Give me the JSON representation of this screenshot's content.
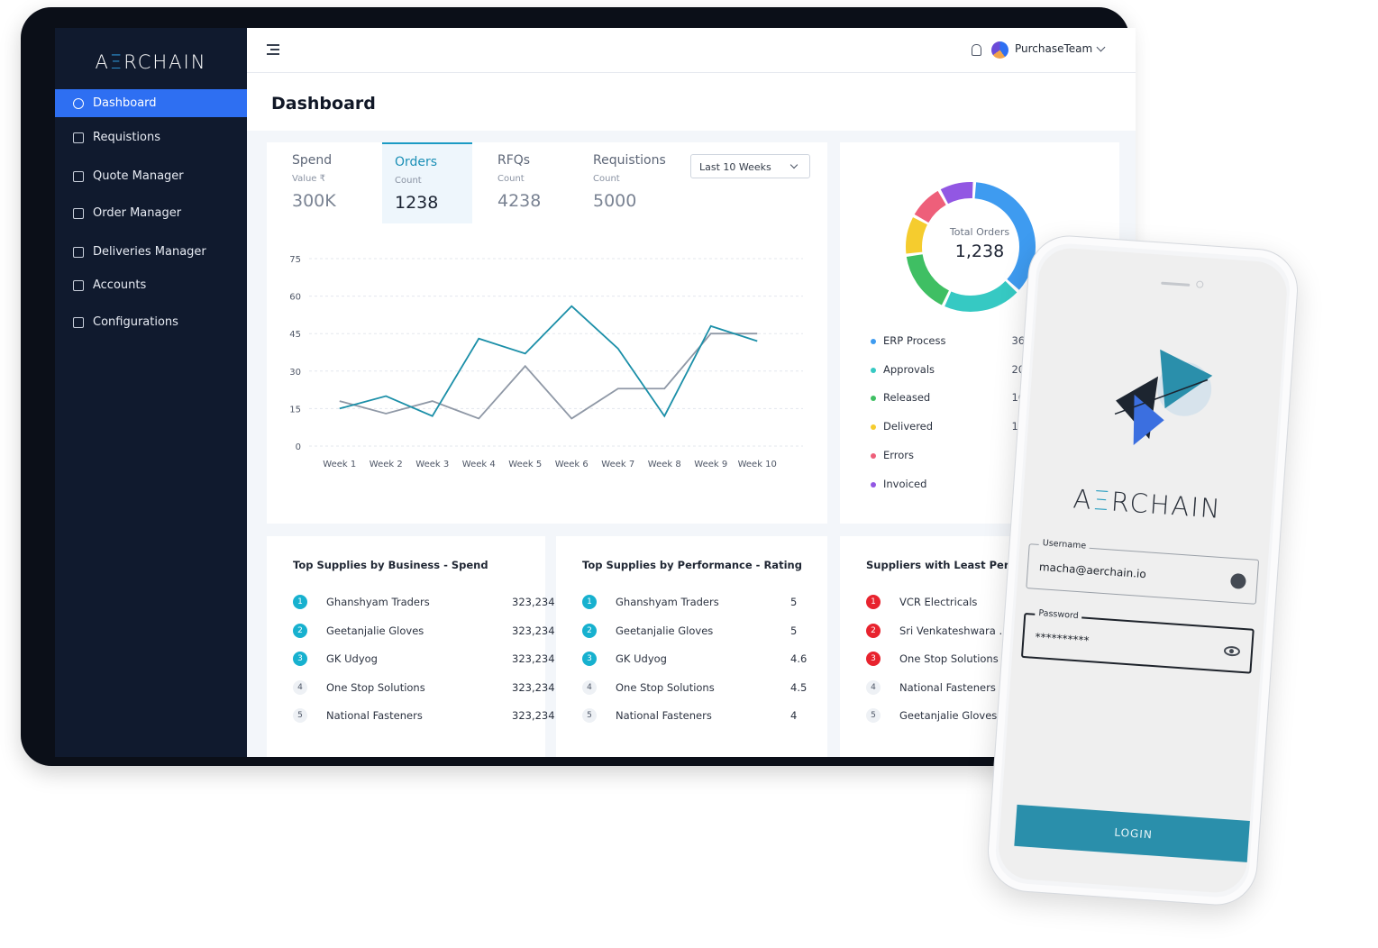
{
  "brand": {
    "logo_text_pre": "A",
    "logo_text_bar": "Ξ",
    "logo_text_post": "RCHAIN"
  },
  "sidebar": {
    "items": [
      {
        "label": "Dashboard",
        "icon": "gauge-icon",
        "active": true
      },
      {
        "label": "Requistions",
        "icon": "document-icon"
      },
      {
        "label": "Quote Manager",
        "icon": "edit-icon"
      },
      {
        "label": "Order Manager",
        "icon": "cart-icon"
      },
      {
        "label": "Deliveries Manager",
        "icon": "truck-icon"
      },
      {
        "label": "Accounts",
        "icon": "wallet-icon"
      },
      {
        "label": "Configurations",
        "icon": "gear-icon"
      }
    ]
  },
  "topbar": {
    "user": "PurchaseTeam"
  },
  "page": {
    "title": "Dashboard"
  },
  "kpis": [
    {
      "label": "Spend",
      "sub": "Value ₹",
      "value": "300K",
      "active": false
    },
    {
      "label": "Orders",
      "sub": "Count",
      "value": "1238",
      "active": true
    },
    {
      "label": "RFQs",
      "sub": "Count",
      "value": "4238",
      "active": false
    },
    {
      "label": "Requistions",
      "sub": "Count",
      "value": "5000",
      "active": false
    }
  ],
  "range_select": {
    "value": "Last 10 Weeks"
  },
  "chart_data": [
    {
      "type": "line",
      "x": [
        "Week 1",
        "Week 2",
        "Week 3",
        "Week 4",
        "Week 5",
        "Week 6",
        "Week 7",
        "Week 8",
        "Week 9",
        "Week 10"
      ],
      "series": [
        {
          "values": [
            15,
            20,
            12,
            43,
            37,
            56,
            39,
            12,
            48,
            42
          ],
          "color": "#1b8fa8"
        },
        {
          "values": [
            18,
            13,
            18,
            11,
            32,
            11,
            23,
            23,
            45,
            45
          ],
          "color": "#8f98a6"
        }
      ],
      "yticks": [
        0,
        15,
        30,
        45,
        60,
        75
      ],
      "ylim": [
        0,
        75
      ],
      "grid": true
    },
    {
      "type": "pie",
      "donut": true,
      "center_label": "Total Orders",
      "center_value": "1,238",
      "slices": [
        {
          "name": "ERP Process",
          "value": 36,
          "label": "36%",
          "color": "#3e9bf0"
        },
        {
          "name": "Approvals",
          "value": 20,
          "label": "20%",
          "color": "#36c9c3"
        },
        {
          "name": "Released",
          "value": 16,
          "label": "16%",
          "color": "#3fbf63"
        },
        {
          "name": "Delivered",
          "value": 10,
          "label": "10%",
          "color": "#f5cc2e"
        },
        {
          "name": "Errors",
          "value": 9,
          "label": "9%",
          "color": "#ee5f7a"
        },
        {
          "name": "Invoiced",
          "value": 9,
          "label": "9%",
          "color": "#9257e3"
        }
      ]
    }
  ],
  "lists": [
    {
      "title": "Top Supplies by Business - Spend",
      "badge_color": "#17b1cf",
      "items": [
        {
          "rank": "1",
          "name": "Ghanshyam Traders",
          "value": "323,234"
        },
        {
          "rank": "2",
          "name": "Geetanjalie Gloves",
          "value": "323,234"
        },
        {
          "rank": "3",
          "name": "GK Udyog",
          "value": "323,234"
        },
        {
          "rank": "4",
          "name": "One Stop Solutions",
          "value": "323,234"
        },
        {
          "rank": "5",
          "name": "National Fasteners",
          "value": "323,234"
        }
      ]
    },
    {
      "title": "Top Supplies by Performance - Rating",
      "badge_color": "#17b1cf",
      "items": [
        {
          "rank": "1",
          "name": "Ghanshyam Traders",
          "value": "5"
        },
        {
          "rank": "2",
          "name": "Geetanjalie Gloves",
          "value": "5"
        },
        {
          "rank": "3",
          "name": "GK Udyog",
          "value": "4.6"
        },
        {
          "rank": "4",
          "name": "One Stop Solutions",
          "value": "4.5"
        },
        {
          "rank": "5",
          "name": "National Fasteners",
          "value": "4"
        }
      ]
    },
    {
      "title": "Suppliers with Least Performance",
      "badge_color": "#e8232e",
      "items": [
        {
          "rank": "1",
          "name": "VCR Electricals",
          "value": ""
        },
        {
          "rank": "2",
          "name": "Sri Venkateshwara ...",
          "value": ""
        },
        {
          "rank": "3",
          "name": "One Stop Solutions",
          "value": ""
        },
        {
          "rank": "4",
          "name": "National Fasteners",
          "value": ""
        },
        {
          "rank": "5",
          "name": "Geetanjalie Gloves",
          "value": ""
        }
      ]
    }
  ],
  "mobile_login": {
    "logo_pre": "A",
    "logo_bar": "Ξ",
    "logo_post": "RCHAIN",
    "username_label": "Username",
    "username_value": "macha@aerchain.io",
    "password_label": "Password",
    "password_value": "**********",
    "login_label": "LOGIN"
  }
}
